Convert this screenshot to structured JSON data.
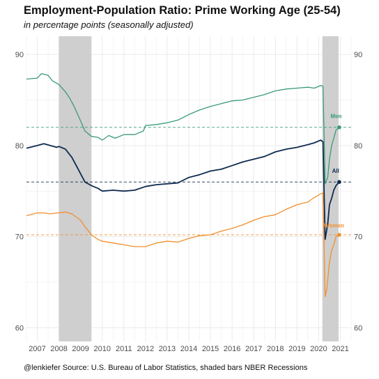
{
  "title": "Employment-Population Ratio: Prime Working Age (25-54)",
  "subtitle": "in percentage points (seasonally adjusted)",
  "caption": "@lenkiefer Source: U.S. Bureau of Labor Statistics, shaded bars NBER Recessions",
  "colors": {
    "men": "#3a9b76",
    "all": "#0d2a4e",
    "women": "#f28f2c",
    "recession": "#cfcfcf",
    "grid": "#e8e8e8"
  },
  "chart_data": {
    "type": "line",
    "xlim": [
      2006.5,
      2021.5
    ],
    "ylim": [
      58.5,
      92
    ],
    "x_ticks": [
      "2007",
      "2008",
      "2009",
      "2010",
      "2011",
      "2012",
      "2013",
      "2014",
      "2015",
      "2016",
      "2017",
      "2018",
      "2019",
      "2020",
      "2021"
    ],
    "y_ticks": [
      "60",
      "70",
      "80",
      "90"
    ],
    "y_ticks_right": [
      "60",
      "70",
      "80",
      "90"
    ],
    "recessions": [
      [
        2008.0,
        2009.5
      ],
      [
        2020.17,
        2020.92
      ]
    ],
    "series": [
      {
        "name": "Men",
        "key": "men",
        "points": [
          [
            2006.5,
            87.3
          ],
          [
            2007.0,
            87.4
          ],
          [
            2007.2,
            87.9
          ],
          [
            2007.5,
            87.7
          ],
          [
            2007.7,
            87.1
          ],
          [
            2008.0,
            86.7
          ],
          [
            2008.3,
            85.9
          ],
          [
            2008.5,
            85.2
          ],
          [
            2008.7,
            84.3
          ],
          [
            2009.0,
            82.7
          ],
          [
            2009.2,
            81.6
          ],
          [
            2009.5,
            81.0
          ],
          [
            2009.8,
            80.9
          ],
          [
            2010.0,
            80.6
          ],
          [
            2010.3,
            81.1
          ],
          [
            2010.6,
            80.8
          ],
          [
            2011.0,
            81.2
          ],
          [
            2011.5,
            81.2
          ],
          [
            2011.9,
            81.6
          ],
          [
            2012.0,
            82.2
          ],
          [
            2012.5,
            82.3
          ],
          [
            2013.0,
            82.5
          ],
          [
            2013.5,
            82.8
          ],
          [
            2014.0,
            83.4
          ],
          [
            2014.5,
            83.9
          ],
          [
            2015.0,
            84.3
          ],
          [
            2015.5,
            84.6
          ],
          [
            2016.0,
            84.9
          ],
          [
            2016.5,
            85.0
          ],
          [
            2017.0,
            85.3
          ],
          [
            2017.5,
            85.6
          ],
          [
            2018.0,
            86.0
          ],
          [
            2018.5,
            86.2
          ],
          [
            2019.0,
            86.3
          ],
          [
            2019.5,
            86.4
          ],
          [
            2019.8,
            86.3
          ],
          [
            2020.1,
            86.6
          ],
          [
            2020.2,
            86.5
          ],
          [
            2020.3,
            75.8
          ],
          [
            2020.42,
            76.5
          ],
          [
            2020.5,
            78.5
          ],
          [
            2020.6,
            80.0
          ],
          [
            2020.7,
            80.8
          ],
          [
            2020.8,
            81.7
          ],
          [
            2020.95,
            82.0
          ]
        ]
      },
      {
        "name": "All",
        "key": "all",
        "points": [
          [
            2006.5,
            79.7
          ],
          [
            2007.0,
            80.0
          ],
          [
            2007.3,
            80.2
          ],
          [
            2007.6,
            80.0
          ],
          [
            2007.9,
            79.8
          ],
          [
            2008.0,
            79.9
          ],
          [
            2008.3,
            79.6
          ],
          [
            2008.6,
            78.7
          ],
          [
            2009.0,
            76.9
          ],
          [
            2009.2,
            76.0
          ],
          [
            2009.5,
            75.6
          ],
          [
            2009.8,
            75.3
          ],
          [
            2010.0,
            75.0
          ],
          [
            2010.5,
            75.1
          ],
          [
            2011.0,
            75.0
          ],
          [
            2011.5,
            75.1
          ],
          [
            2012.0,
            75.5
          ],
          [
            2012.5,
            75.7
          ],
          [
            2013.0,
            75.8
          ],
          [
            2013.5,
            75.9
          ],
          [
            2014.0,
            76.5
          ],
          [
            2014.5,
            76.8
          ],
          [
            2015.0,
            77.2
          ],
          [
            2015.5,
            77.4
          ],
          [
            2016.0,
            77.8
          ],
          [
            2016.5,
            78.2
          ],
          [
            2017.0,
            78.5
          ],
          [
            2017.5,
            78.8
          ],
          [
            2018.0,
            79.3
          ],
          [
            2018.5,
            79.6
          ],
          [
            2019.0,
            79.8
          ],
          [
            2019.5,
            80.1
          ],
          [
            2019.8,
            80.3
          ],
          [
            2020.1,
            80.6
          ],
          [
            2020.2,
            80.4
          ],
          [
            2020.3,
            69.7
          ],
          [
            2020.42,
            71.4
          ],
          [
            2020.5,
            73.5
          ],
          [
            2020.6,
            74.2
          ],
          [
            2020.7,
            75.1
          ],
          [
            2020.8,
            75.6
          ],
          [
            2020.95,
            76.0
          ]
        ]
      },
      {
        "name": "Women",
        "key": "women",
        "points": [
          [
            2006.5,
            72.3
          ],
          [
            2007.0,
            72.6
          ],
          [
            2007.3,
            72.6
          ],
          [
            2007.6,
            72.5
          ],
          [
            2007.9,
            72.6
          ],
          [
            2008.0,
            72.6
          ],
          [
            2008.3,
            72.7
          ],
          [
            2008.6,
            72.5
          ],
          [
            2009.0,
            71.8
          ],
          [
            2009.2,
            71.1
          ],
          [
            2009.5,
            70.2
          ],
          [
            2009.8,
            69.7
          ],
          [
            2010.0,
            69.5
          ],
          [
            2010.5,
            69.3
          ],
          [
            2011.0,
            69.1
          ],
          [
            2011.5,
            68.9
          ],
          [
            2012.0,
            68.9
          ],
          [
            2012.5,
            69.3
          ],
          [
            2013.0,
            69.5
          ],
          [
            2013.5,
            69.4
          ],
          [
            2014.0,
            69.8
          ],
          [
            2014.5,
            70.1
          ],
          [
            2015.0,
            70.2
          ],
          [
            2015.5,
            70.6
          ],
          [
            2016.0,
            70.9
          ],
          [
            2016.5,
            71.3
          ],
          [
            2017.0,
            71.8
          ],
          [
            2017.5,
            72.2
          ],
          [
            2018.0,
            72.4
          ],
          [
            2018.5,
            73.0
          ],
          [
            2019.0,
            73.5
          ],
          [
            2019.5,
            73.8
          ],
          [
            2019.8,
            74.3
          ],
          [
            2020.1,
            74.7
          ],
          [
            2020.2,
            74.8
          ],
          [
            2020.3,
            63.4
          ],
          [
            2020.38,
            64.3
          ],
          [
            2020.5,
            67.2
          ],
          [
            2020.6,
            68.5
          ],
          [
            2020.7,
            69.1
          ],
          [
            2020.8,
            70.0
          ],
          [
            2020.95,
            70.2
          ]
        ]
      }
    ],
    "reference_lines": [
      {
        "key": "men",
        "y": 82.0
      },
      {
        "key": "all",
        "y": 76.0
      },
      {
        "key": "women",
        "y": 70.2
      }
    ],
    "end_labels": [
      {
        "key": "men",
        "text": "Men"
      },
      {
        "key": "all",
        "text": "All"
      },
      {
        "key": "women",
        "text": "Women"
      }
    ]
  }
}
